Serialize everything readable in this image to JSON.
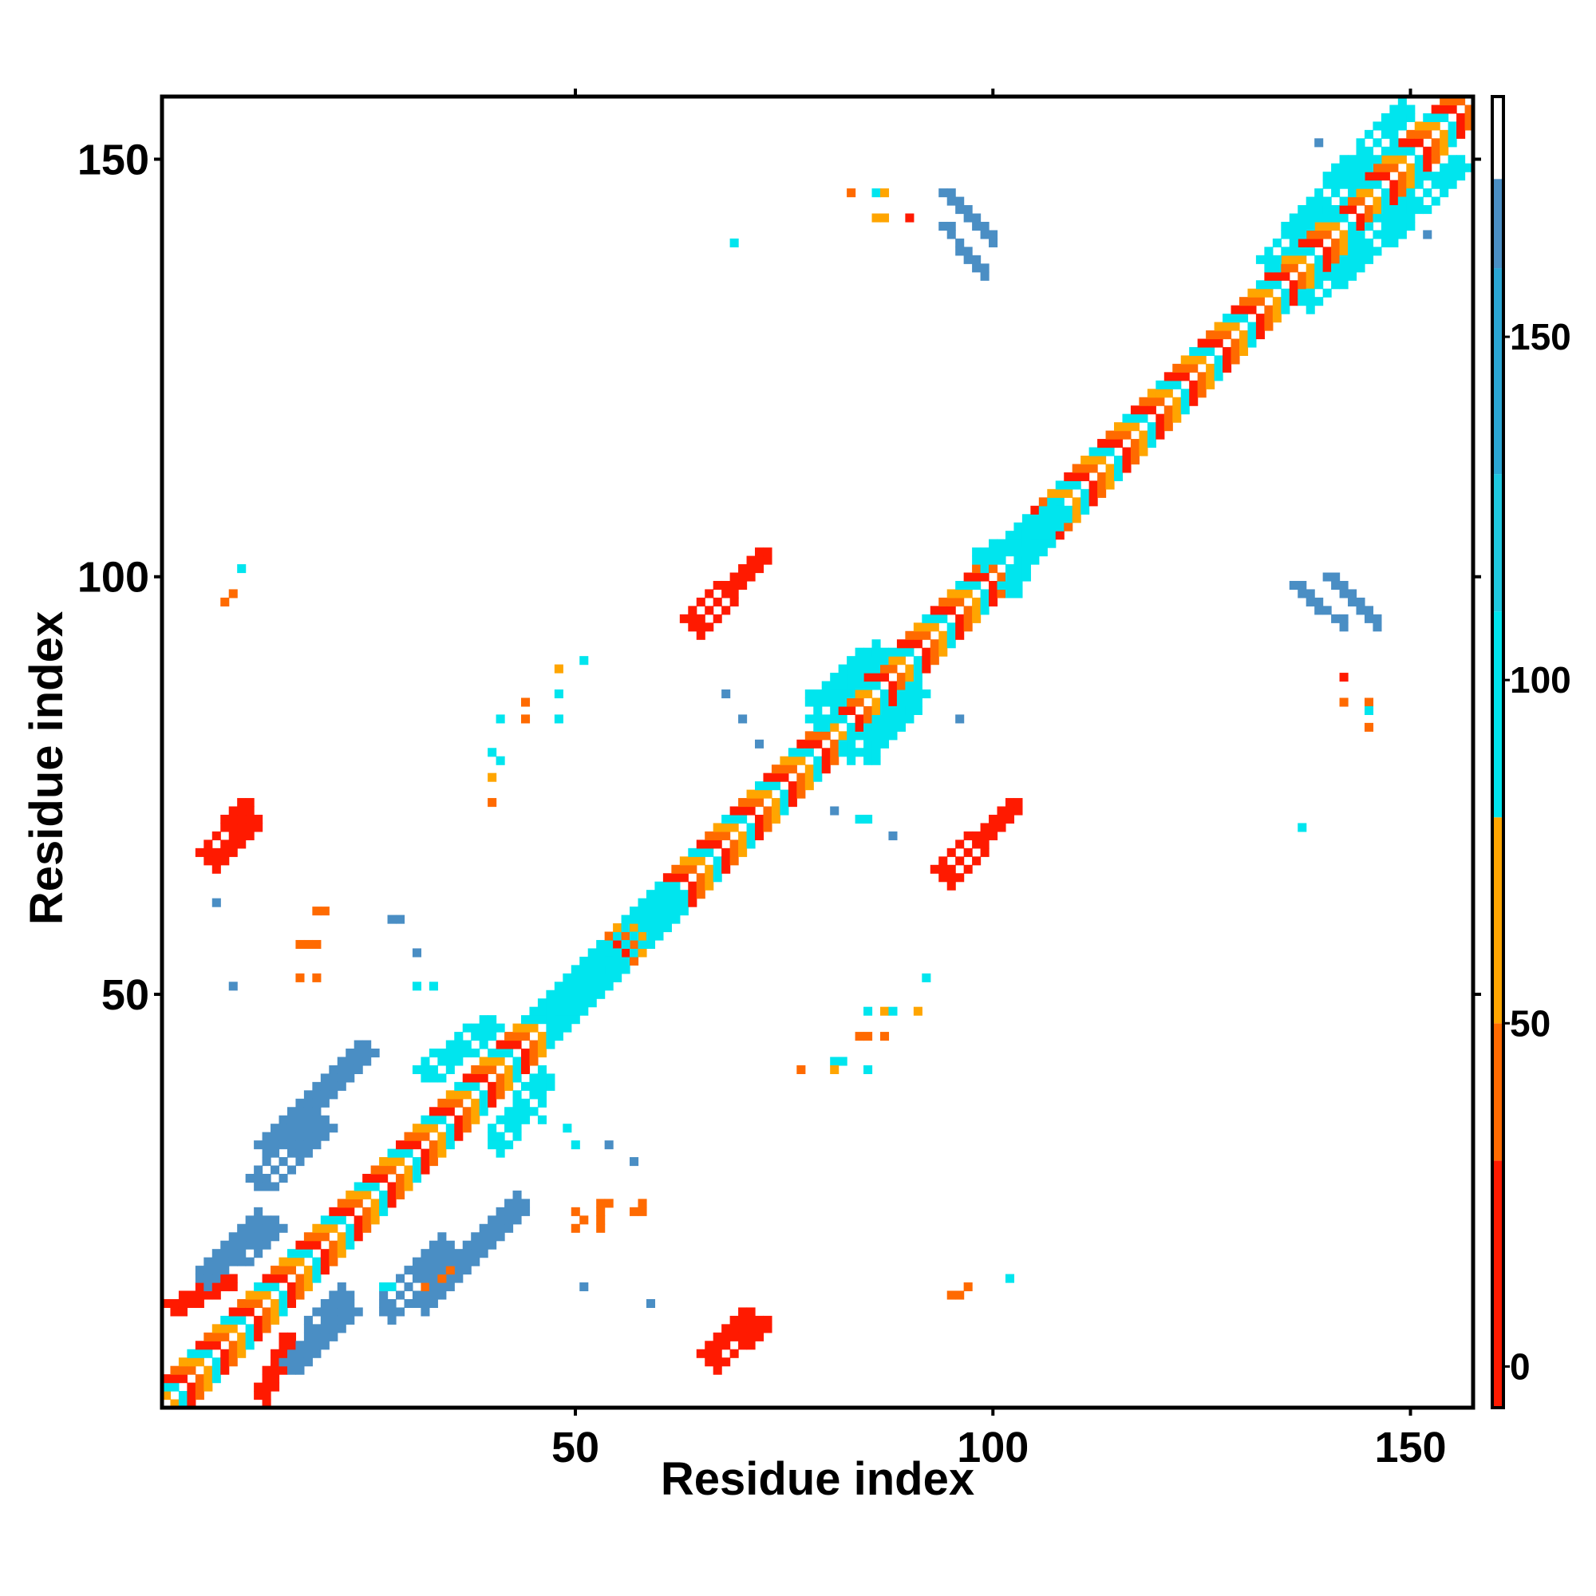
{
  "chart_data": {
    "type": "heatmap",
    "xlabel": "Residue index",
    "ylabel": "Residue index",
    "xlim": [
      0.5,
      157.5
    ],
    "ylim": [
      0.5,
      157.5
    ],
    "x_ticks": [
      50,
      100,
      150
    ],
    "y_ticks": [
      50,
      100,
      150
    ],
    "colorbar": {
      "range": [
        -6,
        185
      ],
      "ticks": [
        0,
        50,
        100,
        150
      ],
      "bands": [
        {
          "from": -6,
          "to": 30,
          "color": "#ff1a00"
        },
        {
          "from": 30,
          "to": 50,
          "color": "#ff6a00"
        },
        {
          "from": 50,
          "to": 80,
          "color": "#ffa500"
        },
        {
          "from": 80,
          "to": 110,
          "color": "#00e5ee"
        },
        {
          "from": 110,
          "to": 130,
          "color": "#1ec8e0"
        },
        {
          "from": 130,
          "to": 160,
          "color": "#2aa6d4"
        },
        {
          "from": 160,
          "to": 173,
          "color": "#4a8ec4"
        },
        {
          "from": 173,
          "to": 185,
          "color": "#ffffff"
        }
      ]
    },
    "colors": {
      "red": "#ff1a00",
      "dark_orange": "#ff6a00",
      "orange": "#ffa500",
      "cyan": "#00e5ee",
      "blue": "#4a8ec4"
    },
    "diagonal": {
      "from": 1,
      "to": 157,
      "width": 3,
      "pattern": [
        "red",
        "dark_orange",
        "orange",
        "cyan"
      ]
    },
    "blobs": [
      {
        "a": [
          1,
          8
        ],
        "b": [
          13,
          16
        ],
        "width": 3,
        "color": "red"
      },
      {
        "a": [
          12,
          24
        ],
        "b": [
          32,
          44
        ],
        "width": 4,
        "color": "blue"
      },
      {
        "a": [
          8,
          13
        ],
        "b": [
          19,
          23
        ],
        "width": 4,
        "color": "blue"
      },
      {
        "a": [
          15,
          22
        ],
        "b": [
          6,
          13
        ],
        "width": 4,
        "color": "blue"
      },
      {
        "a": [
          11,
          19
        ],
        "b": [
          28,
          35
        ],
        "width": 4,
        "color": "blue"
      },
      {
        "a": [
          31,
          39
        ],
        "b": [
          41,
          47
        ],
        "width": 4,
        "color": "cyan"
      },
      {
        "a": [
          45,
          53
        ],
        "b": [
          48,
          56
        ],
        "width": 5,
        "color": "cyan"
      },
      {
        "a": [
          53,
          60
        ],
        "b": [
          55,
          63
        ],
        "width": 4,
        "color": "cyan"
      },
      {
        "a": [
          6,
          11
        ],
        "b": [
          66,
          71
        ],
        "width": 3,
        "color": "red"
      },
      {
        "a": [
          63,
          72
        ],
        "b": [
          95,
          103
        ],
        "width": 3,
        "color": "red"
      },
      {
        "a": [
          66,
          72
        ],
        "b": [
          6,
          11
        ],
        "width": 3,
        "color": "red"
      },
      {
        "a": [
          93,
          102
        ],
        "b": [
          65,
          73
        ],
        "width": 3,
        "color": "red"
      },
      {
        "a": [
          94,
          99
        ],
        "b": [
          146,
          141
        ],
        "width": 3,
        "color": "blue"
      },
      {
        "a": [
          136,
          141
        ],
        "b": [
          99,
          95
        ],
        "width": 3,
        "color": "blue"
      },
      {
        "a": [
          84,
          90
        ],
        "b": [
          79,
          87
        ],
        "width": 4,
        "color": "cyan"
      },
      {
        "a": [
          78,
          84
        ],
        "b": [
          83,
          91
        ],
        "width": 4,
        "color": "cyan"
      },
      {
        "a": [
          101,
          107
        ],
        "b": [
          99,
          109
        ],
        "width": 4,
        "color": "cyan"
      },
      {
        "a": [
          132,
          142
        ],
        "b": [
          138,
          150
        ],
        "width": 4,
        "color": "cyan"
      },
      {
        "a": [
          143,
          155
        ],
        "b": [
          140,
          150
        ],
        "width": 4,
        "color": "cyan"
      }
    ],
    "scatter_cells": [
      {
        "x": 10,
        "y": 101,
        "color": "cyan"
      },
      {
        "x": 9,
        "y": 98,
        "color": "dark_orange"
      },
      {
        "x": 8,
        "y": 97,
        "color": "dark_orange"
      },
      {
        "x": 7,
        "y": 61,
        "color": "blue"
      },
      {
        "x": 9,
        "y": 51,
        "color": "blue"
      },
      {
        "x": 19,
        "y": 60,
        "color": "dark_orange"
      },
      {
        "x": 20,
        "y": 60,
        "color": "dark_orange"
      },
      {
        "x": 17,
        "y": 56,
        "color": "dark_orange"
      },
      {
        "x": 18,
        "y": 56,
        "color": "dark_orange"
      },
      {
        "x": 19,
        "y": 56,
        "color": "dark_orange"
      },
      {
        "x": 17,
        "y": 52,
        "color": "dark_orange"
      },
      {
        "x": 19,
        "y": 52,
        "color": "dark_orange"
      },
      {
        "x": 28,
        "y": 59,
        "color": "blue"
      },
      {
        "x": 29,
        "y": 59,
        "color": "blue"
      },
      {
        "x": 31,
        "y": 55,
        "color": "blue"
      },
      {
        "x": 31,
        "y": 51,
        "color": "cyan"
      },
      {
        "x": 33,
        "y": 51,
        "color": "cyan"
      },
      {
        "x": 40,
        "y": 79,
        "color": "cyan"
      },
      {
        "x": 41,
        "y": 78,
        "color": "cyan"
      },
      {
        "x": 40,
        "y": 76,
        "color": "orange"
      },
      {
        "x": 40,
        "y": 73,
        "color": "dark_orange"
      },
      {
        "x": 41,
        "y": 83,
        "color": "cyan"
      },
      {
        "x": 44,
        "y": 85,
        "color": "dark_orange"
      },
      {
        "x": 44,
        "y": 83,
        "color": "dark_orange"
      },
      {
        "x": 48,
        "y": 89,
        "color": "orange"
      },
      {
        "x": 48,
        "y": 86,
        "color": "cyan"
      },
      {
        "x": 48,
        "y": 83,
        "color": "cyan"
      },
      {
        "x": 51,
        "y": 90,
        "color": "cyan"
      },
      {
        "x": 68,
        "y": 86,
        "color": "blue"
      },
      {
        "x": 70,
        "y": 83,
        "color": "blue"
      },
      {
        "x": 72,
        "y": 80,
        "color": "blue"
      },
      {
        "x": 81,
        "y": 72,
        "color": "blue"
      },
      {
        "x": 84,
        "y": 71,
        "color": "cyan"
      },
      {
        "x": 85,
        "y": 71,
        "color": "cyan"
      },
      {
        "x": 88,
        "y": 69,
        "color": "blue"
      },
      {
        "x": 96,
        "y": 83,
        "color": "blue"
      },
      {
        "x": 85,
        "y": 48,
        "color": "cyan"
      },
      {
        "x": 87,
        "y": 48,
        "color": "orange"
      },
      {
        "x": 88,
        "y": 48,
        "color": "cyan"
      },
      {
        "x": 91,
        "y": 48,
        "color": "orange"
      },
      {
        "x": 92,
        "y": 52,
        "color": "cyan"
      },
      {
        "x": 84,
        "y": 45,
        "color": "dark_orange"
      },
      {
        "x": 85,
        "y": 45,
        "color": "dark_orange"
      },
      {
        "x": 87,
        "y": 45,
        "color": "dark_orange"
      },
      {
        "x": 81,
        "y": 42,
        "color": "cyan"
      },
      {
        "x": 82,
        "y": 42,
        "color": "cyan"
      },
      {
        "x": 85,
        "y": 41,
        "color": "cyan"
      },
      {
        "x": 81,
        "y": 41,
        "color": "orange"
      },
      {
        "x": 77,
        "y": 41,
        "color": "dark_orange"
      },
      {
        "x": 46,
        "y": 37,
        "color": "cyan"
      },
      {
        "x": 46,
        "y": 35,
        "color": "cyan"
      },
      {
        "x": 49,
        "y": 34,
        "color": "cyan"
      },
      {
        "x": 50,
        "y": 32,
        "color": "cyan"
      },
      {
        "x": 54,
        "y": 32,
        "color": "blue"
      },
      {
        "x": 57,
        "y": 30,
        "color": "blue"
      },
      {
        "x": 50,
        "y": 24,
        "color": "dark_orange"
      },
      {
        "x": 51,
        "y": 23,
        "color": "dark_orange"
      },
      {
        "x": 50,
        "y": 22,
        "color": "dark_orange"
      },
      {
        "x": 53,
        "y": 25,
        "color": "dark_orange"
      },
      {
        "x": 54,
        "y": 25,
        "color": "dark_orange"
      },
      {
        "x": 53,
        "y": 24,
        "color": "dark_orange"
      },
      {
        "x": 53,
        "y": 23,
        "color": "dark_orange"
      },
      {
        "x": 53,
        "y": 22,
        "color": "dark_orange"
      },
      {
        "x": 58,
        "y": 25,
        "color": "dark_orange"
      },
      {
        "x": 58,
        "y": 24,
        "color": "dark_orange"
      },
      {
        "x": 57,
        "y": 24,
        "color": "dark_orange"
      },
      {
        "x": 51,
        "y": 15,
        "color": "blue"
      },
      {
        "x": 59,
        "y": 13,
        "color": "blue"
      },
      {
        "x": 35,
        "y": 17,
        "color": "dark_orange"
      },
      {
        "x": 34,
        "y": 16,
        "color": "dark_orange"
      },
      {
        "x": 28,
        "y": 15,
        "color": "cyan"
      },
      {
        "x": 27,
        "y": 15,
        "color": "cyan"
      },
      {
        "x": 32,
        "y": 15,
        "color": "dark_orange"
      },
      {
        "x": 97,
        "y": 15,
        "color": "dark_orange"
      },
      {
        "x": 96,
        "y": 14,
        "color": "dark_orange"
      },
      {
        "x": 95,
        "y": 14,
        "color": "dark_orange"
      },
      {
        "x": 102,
        "y": 16,
        "color": "cyan"
      },
      {
        "x": 83,
        "y": 146,
        "color": "dark_orange"
      },
      {
        "x": 86,
        "y": 146,
        "color": "cyan"
      },
      {
        "x": 87,
        "y": 146,
        "color": "orange"
      },
      {
        "x": 86,
        "y": 143,
        "color": "orange"
      },
      {
        "x": 87,
        "y": 143,
        "color": "orange"
      },
      {
        "x": 90,
        "y": 143,
        "color": "red"
      },
      {
        "x": 69,
        "y": 140,
        "color": "cyan"
      },
      {
        "x": 139,
        "y": 152,
        "color": "blue"
      },
      {
        "x": 152,
        "y": 141,
        "color": "blue"
      },
      {
        "x": 142,
        "y": 88,
        "color": "red"
      },
      {
        "x": 142,
        "y": 85,
        "color": "dark_orange"
      },
      {
        "x": 145,
        "y": 85,
        "color": "dark_orange"
      },
      {
        "x": 145,
        "y": 84,
        "color": "cyan"
      },
      {
        "x": 145,
        "y": 82,
        "color": "dark_orange"
      },
      {
        "x": 137,
        "y": 70,
        "color": "cyan"
      }
    ]
  }
}
